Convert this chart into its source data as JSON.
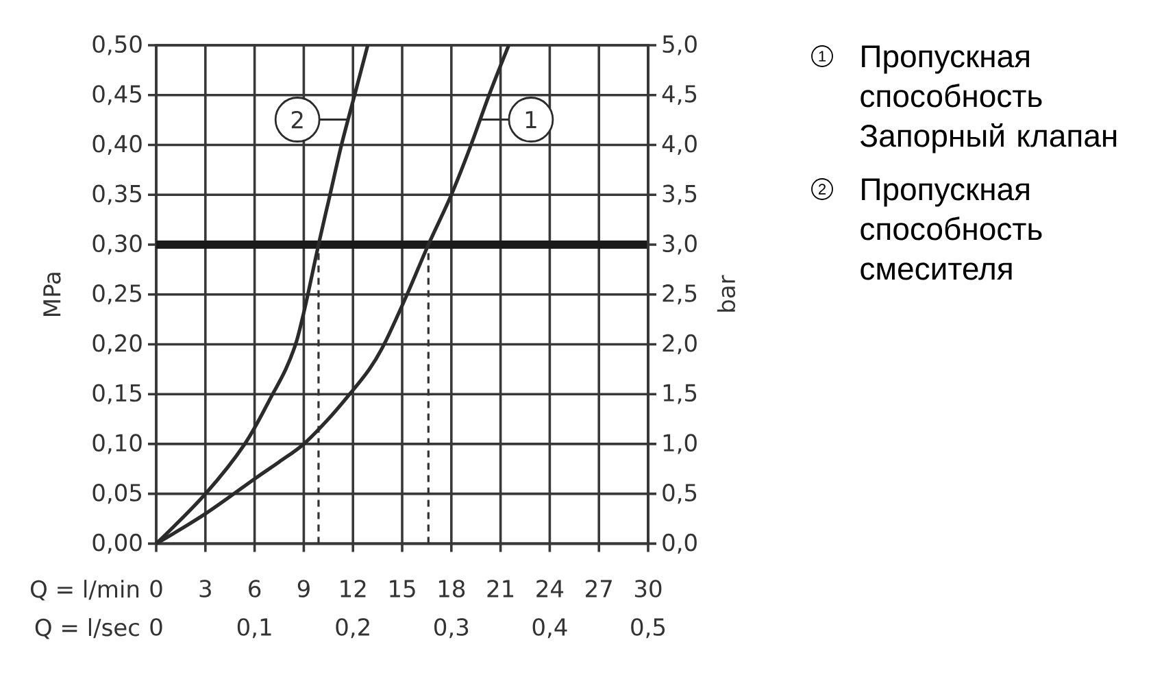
{
  "chart_data": {
    "type": "line",
    "xlabel": "Q = l/min",
    "x2label": "Q = l/sec",
    "ylabel": "MPa",
    "y2label": "bar",
    "xlim": [
      0,
      30
    ],
    "xticks": [
      0,
      3,
      6,
      9,
      12,
      15,
      18,
      21,
      24,
      27,
      30
    ],
    "x2lim": [
      0,
      0.5
    ],
    "x2ticks": [
      0,
      {
        "value": 0.1,
        "label": "0,1"
      },
      {
        "value": 0.2,
        "label": "0,2"
      },
      {
        "value": 0.3,
        "label": "0,3"
      },
      {
        "value": 0.4,
        "label": "0,4"
      },
      {
        "value": 0.5,
        "label": "0,5"
      }
    ],
    "ylim": [
      0,
      0.5
    ],
    "yticks": [
      {
        "value": 0,
        "label": "0,00"
      },
      {
        "value": 0.05,
        "label": "0,05"
      },
      {
        "value": 0.1,
        "label": "0,10"
      },
      {
        "value": 0.15,
        "label": "0,15"
      },
      {
        "value": 0.2,
        "label": "0,20"
      },
      {
        "value": 0.25,
        "label": "0,25"
      },
      {
        "value": 0.3,
        "label": "0,30"
      },
      {
        "value": 0.35,
        "label": "0,35"
      },
      {
        "value": 0.4,
        "label": "0,40"
      },
      {
        "value": 0.45,
        "label": "0,45"
      },
      {
        "value": 0.5,
        "label": "0,50"
      }
    ],
    "y2lim": [
      0,
      5
    ],
    "y2ticks": [
      {
        "value": 0,
        "label": "0,0"
      },
      {
        "value": 0.5,
        "label": "0,5"
      },
      {
        "value": 1,
        "label": "1,0"
      },
      {
        "value": 1.5,
        "label": "1,5"
      },
      {
        "value": 2,
        "label": "2,0"
      },
      {
        "value": 2.5,
        "label": "2,5"
      },
      {
        "value": 3,
        "label": "3,0"
      },
      {
        "value": 3.5,
        "label": "3,5"
      },
      {
        "value": 4,
        "label": "4,0"
      },
      {
        "value": 4.5,
        "label": "4,5"
      },
      {
        "value": 5,
        "label": "5,0"
      }
    ],
    "series": [
      {
        "name": "1",
        "color": "#2b2b2b",
        "x": [
          0,
          3,
          6,
          7.5,
          9,
          10.5,
          11.8,
          13,
          13.9,
          15.3,
          16.6,
          18,
          19.2,
          20.3,
          21.5
        ],
        "values": [
          0,
          0.03,
          0.065,
          0.082,
          0.1,
          0.125,
          0.15,
          0.175,
          0.2,
          0.25,
          0.3,
          0.35,
          0.4,
          0.45,
          0.5
        ]
      },
      {
        "name": "2",
        "color": "#2b2b2b",
        "x": [
          0,
          3,
          5.4,
          7.1,
          7.9,
          8.5,
          8.9,
          9.25,
          9.9,
          10.6,
          11.3,
          12.1,
          12.9
        ],
        "values": [
          0,
          0.05,
          0.1,
          0.15,
          0.175,
          0.2,
          0.225,
          0.25,
          0.3,
          0.35,
          0.4,
          0.45,
          0.5
        ]
      }
    ],
    "ref_lines": [
      {
        "axis": "y",
        "value": 0.3,
        "color": "#1a1a1a"
      },
      {
        "axis": "x",
        "value": 9.9,
        "color": "#333333",
        "line_style": "dashed"
      },
      {
        "axis": "x",
        "value": 16.6,
        "color": "#333333",
        "line_style": "dashed"
      }
    ],
    "grid": true,
    "legend": "right",
    "annotations": [
      "Пропускная способность Запорный клапан",
      "Пропускная способность смесителя"
    ]
  }
}
